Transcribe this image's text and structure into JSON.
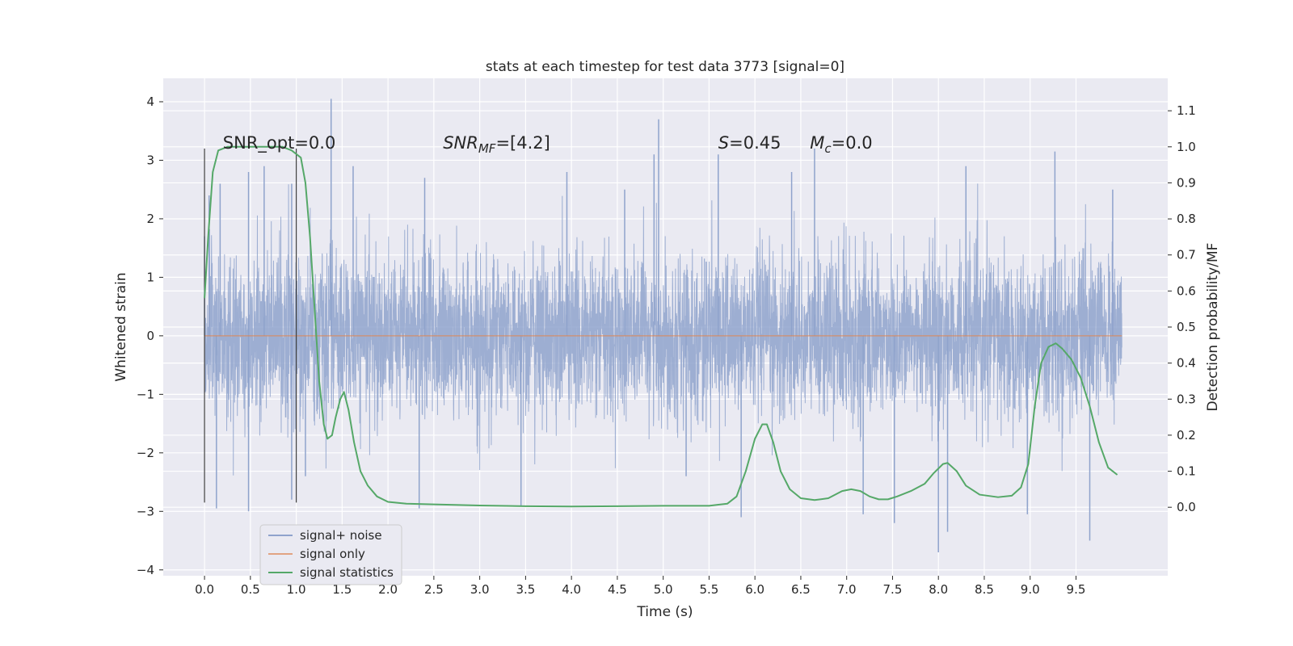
{
  "chart_data": {
    "type": "line",
    "title": "stats at each timestep for test data 3773 [signal=0]",
    "xlabel": "Time (s)",
    "ylabel": "Whitened strain",
    "y2label": "Detection probability/MF",
    "xlim": [
      -0.45,
      10.5
    ],
    "ylim": [
      -4.1,
      4.4
    ],
    "y2lim": [
      -0.19,
      1.19
    ],
    "xticks": [
      0.0,
      0.5,
      1.0,
      1.5,
      2.0,
      2.5,
      3.0,
      3.5,
      4.0,
      4.5,
      5.0,
      5.5,
      6.0,
      6.5,
      7.0,
      7.5,
      8.0,
      8.5,
      9.0,
      9.5
    ],
    "xtick_labels": [
      "0.0",
      "0.5",
      "1.0",
      "1.5",
      "2.0",
      "2.5",
      "3.0",
      "3.5",
      "4.0",
      "4.5",
      "5.0",
      "5.5",
      "6.0",
      "6.5",
      "7.0",
      "7.5",
      "8.0",
      "8.5",
      "9.0",
      "9.5"
    ],
    "yticks": [
      4,
      3,
      2,
      1,
      0,
      -1,
      -2,
      -3,
      -4
    ],
    "ytick_labels": [
      "4",
      "3",
      "2",
      "1",
      "0",
      "−1",
      "−2",
      "−3",
      "−4"
    ],
    "y2ticks": [
      1.1,
      1.0,
      0.9,
      0.8,
      0.7,
      0.6,
      0.5,
      0.4,
      0.3,
      0.2,
      0.1,
      0.0
    ],
    "y2tick_labels": [
      "1.1",
      "1.0",
      "0.9",
      "0.8",
      "0.7",
      "0.6",
      "0.5",
      "0.4",
      "0.3",
      "0.2",
      "0.1",
      "0.0"
    ],
    "grid": true,
    "legend_position": "bottom-left",
    "annotations": [
      {
        "text": "SNR_opt=0.0",
        "x": 0.2,
        "y": 3.2
      },
      {
        "text": "SNR",
        "sub": "MF",
        "suffix": "=[4.2]",
        "x": 2.6,
        "y": 3.2
      },
      {
        "text": "S",
        "suffix": "=0.45",
        "x": 5.6,
        "y": 3.2
      },
      {
        "text": "M",
        "sub": "c",
        "suffix": "=0.0",
        "x": 6.6,
        "y": 3.2
      }
    ],
    "vlines": [
      {
        "x": 0.0,
        "ymin": -2.85,
        "ymax": 3.2
      },
      {
        "x": 1.0,
        "ymin": -2.85,
        "ymax": 3.2
      }
    ],
    "series": [
      {
        "name": "signal+ noise",
        "axis": "left",
        "color": "#8fa3cc",
        "x_range": [
          0.0,
          10.0
        ],
        "envelope_sigma": 0.68,
        "peak_samples": [
          {
            "x": 0.0,
            "y": 1.7
          },
          {
            "x": 0.05,
            "y": 2.4
          },
          {
            "x": 0.17,
            "y": 2.6
          },
          {
            "x": 0.48,
            "y": 2.8
          },
          {
            "x": 0.65,
            "y": 2.9
          },
          {
            "x": 0.95,
            "y": 2.6
          },
          {
            "x": 1.38,
            "y": 4.05
          },
          {
            "x": 1.62,
            "y": 2.9
          },
          {
            "x": 2.4,
            "y": 2.7
          },
          {
            "x": 3.95,
            "y": 2.8
          },
          {
            "x": 4.58,
            "y": 2.5
          },
          {
            "x": 4.9,
            "y": 3.1
          },
          {
            "x": 4.95,
            "y": 3.7
          },
          {
            "x": 5.6,
            "y": 3.1
          },
          {
            "x": 6.4,
            "y": 2.8
          },
          {
            "x": 6.65,
            "y": 3.2
          },
          {
            "x": 8.3,
            "y": 2.9
          },
          {
            "x": 9.27,
            "y": 3.15
          },
          {
            "x": 9.9,
            "y": 2.5
          }
        ],
        "trough_samples": [
          {
            "x": 0.13,
            "y": -2.95
          },
          {
            "x": 0.48,
            "y": -3.0
          },
          {
            "x": 0.95,
            "y": -2.8
          },
          {
            "x": 1.1,
            "y": -2.4
          },
          {
            "x": 2.34,
            "y": -2.95
          },
          {
            "x": 3.45,
            "y": -2.9
          },
          {
            "x": 5.25,
            "y": -2.4
          },
          {
            "x": 5.85,
            "y": -3.1
          },
          {
            "x": 7.18,
            "y": -3.05
          },
          {
            "x": 7.52,
            "y": -3.2
          },
          {
            "x": 8.0,
            "y": -3.7
          },
          {
            "x": 8.1,
            "y": -3.35
          },
          {
            "x": 8.97,
            "y": -3.05
          },
          {
            "x": 9.65,
            "y": -3.5
          }
        ]
      },
      {
        "name": "signal only",
        "axis": "left",
        "color": "#dd8452",
        "x": [
          0.0,
          10.0
        ],
        "values": [
          0.0,
          0.0
        ]
      },
      {
        "name": "signal statistics",
        "axis": "right",
        "color": "#55a868",
        "x": [
          0.0,
          0.04,
          0.09,
          0.15,
          0.25,
          0.4,
          0.55,
          0.7,
          0.85,
          0.95,
          1.05,
          1.1,
          1.15,
          1.2,
          1.25,
          1.3,
          1.34,
          1.39,
          1.43,
          1.48,
          1.52,
          1.57,
          1.63,
          1.7,
          1.78,
          1.88,
          2.0,
          2.2,
          2.5,
          3.0,
          3.5,
          4.0,
          4.5,
          5.0,
          5.5,
          5.7,
          5.8,
          5.9,
          6.0,
          6.08,
          6.13,
          6.2,
          6.28,
          6.38,
          6.5,
          6.65,
          6.8,
          6.95,
          7.05,
          7.15,
          7.25,
          7.35,
          7.45,
          7.55,
          7.7,
          7.85,
          7.95,
          8.05,
          8.1,
          8.2,
          8.3,
          8.45,
          8.65,
          8.8,
          8.9,
          8.98,
          9.05,
          9.12,
          9.2,
          9.28,
          9.35,
          9.45,
          9.55,
          9.65,
          9.75,
          9.85,
          9.95
        ],
        "values": [
          0.58,
          0.75,
          0.93,
          0.99,
          1.0,
          1.0,
          1.0,
          1.0,
          1.0,
          0.99,
          0.97,
          0.9,
          0.75,
          0.55,
          0.35,
          0.23,
          0.19,
          0.2,
          0.25,
          0.3,
          0.32,
          0.27,
          0.18,
          0.1,
          0.06,
          0.03,
          0.015,
          0.01,
          0.008,
          0.005,
          0.003,
          0.002,
          0.003,
          0.004,
          0.004,
          0.01,
          0.03,
          0.1,
          0.19,
          0.23,
          0.23,
          0.18,
          0.1,
          0.05,
          0.025,
          0.02,
          0.025,
          0.045,
          0.05,
          0.045,
          0.03,
          0.022,
          0.022,
          0.03,
          0.045,
          0.065,
          0.095,
          0.12,
          0.123,
          0.1,
          0.06,
          0.035,
          0.028,
          0.032,
          0.055,
          0.12,
          0.28,
          0.4,
          0.445,
          0.455,
          0.44,
          0.41,
          0.36,
          0.28,
          0.18,
          0.11,
          0.09
        ]
      }
    ]
  }
}
